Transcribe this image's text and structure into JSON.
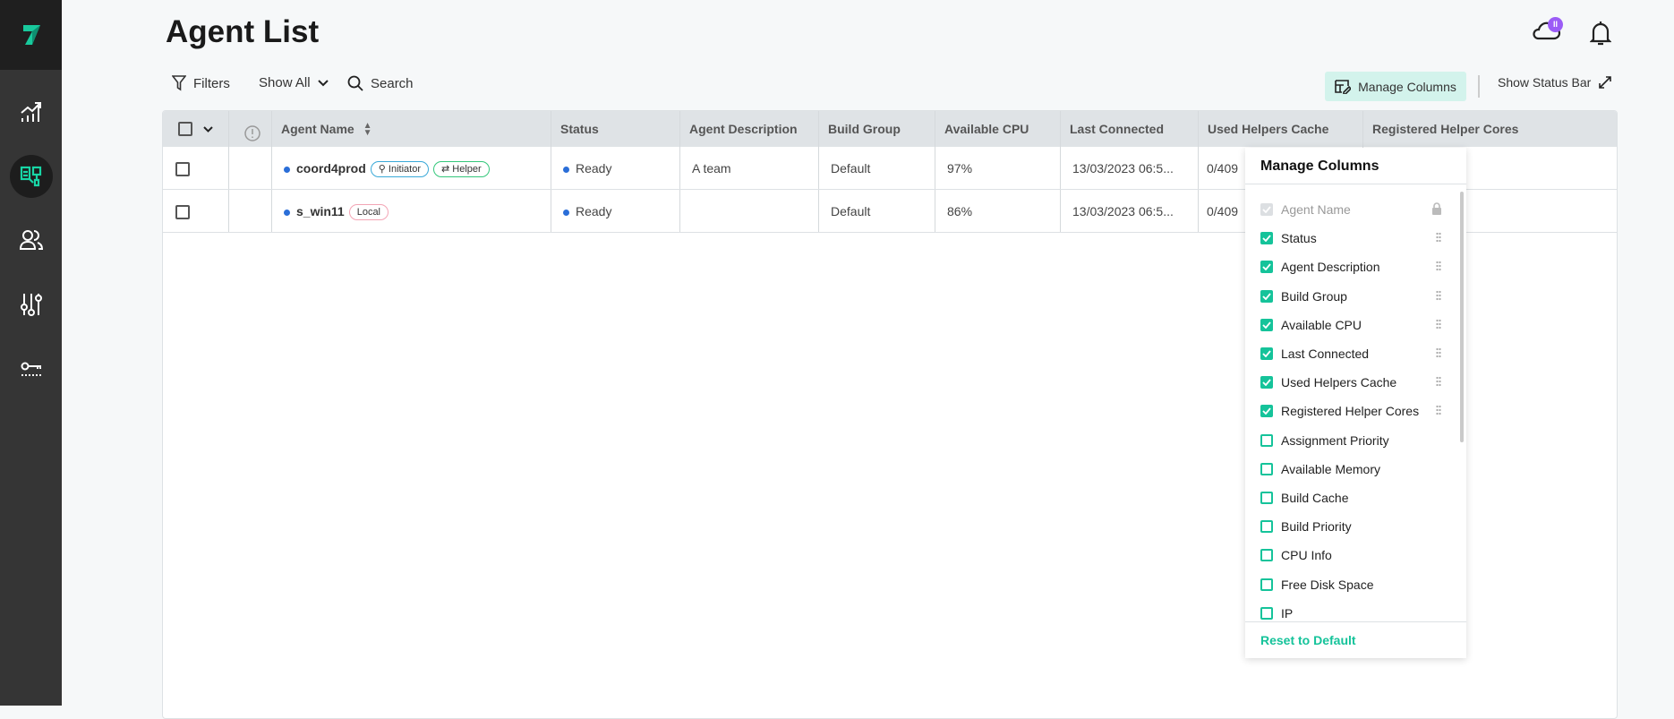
{
  "app": {
    "title": "Agent List",
    "cloud_badge": "II"
  },
  "sidebar": {
    "items": [
      {
        "icon": "analytics-icon"
      },
      {
        "icon": "agents-icon",
        "active": true
      },
      {
        "icon": "users-icon"
      },
      {
        "icon": "settings-sliders-icon"
      },
      {
        "icon": "license-key-icon"
      }
    ]
  },
  "toolbar": {
    "filters": "Filters",
    "show_all": "Show All",
    "search": "Search",
    "manage_columns": "Manage Columns",
    "show_status_bar": "Show Status Bar"
  },
  "table": {
    "columns": [
      "Agent Name",
      "Status",
      "Agent Description",
      "Build Group",
      "Available CPU",
      "Last Connected",
      "Used Helpers Cache",
      "Registered Helper Cores"
    ],
    "rows": [
      {
        "name": "coord4prod",
        "tags": [
          "Initiator",
          "Helper"
        ],
        "status": "Ready",
        "description": "A team",
        "build_group": "Default",
        "cpu": "97%",
        "last_connected": "13/03/2023 06:5...",
        "cache": "0/409"
      },
      {
        "name": "s_win11",
        "tags": [
          "Local"
        ],
        "status": "Ready",
        "description": "",
        "build_group": "Default",
        "cpu": "86%",
        "last_connected": "13/03/2023 06:5...",
        "cache": "0/409"
      }
    ]
  },
  "manage_panel": {
    "title": "Manage Columns",
    "reset": "Reset to Default",
    "items": [
      {
        "label": "Agent Name",
        "checked": true,
        "locked": true
      },
      {
        "label": "Status",
        "checked": true
      },
      {
        "label": "Agent Description",
        "checked": true
      },
      {
        "label": "Build Group",
        "checked": true
      },
      {
        "label": "Available CPU",
        "checked": true
      },
      {
        "label": "Last Connected",
        "checked": true
      },
      {
        "label": "Used Helpers Cache",
        "checked": true
      },
      {
        "label": "Registered Helper Cores",
        "checked": true
      },
      {
        "label": "Assignment Priority",
        "checked": false
      },
      {
        "label": "Available Memory",
        "checked": false
      },
      {
        "label": "Build Cache",
        "checked": false
      },
      {
        "label": "Build Priority",
        "checked": false
      },
      {
        "label": "CPU Info",
        "checked": false
      },
      {
        "label": "Free Disk Space",
        "checked": false
      },
      {
        "label": "IP",
        "checked": false
      }
    ]
  },
  "colors": {
    "accent": "#15c39a",
    "status_dot": "#2a6ed8",
    "badge": "#9b5cf6",
    "sidebar": "#353535"
  }
}
